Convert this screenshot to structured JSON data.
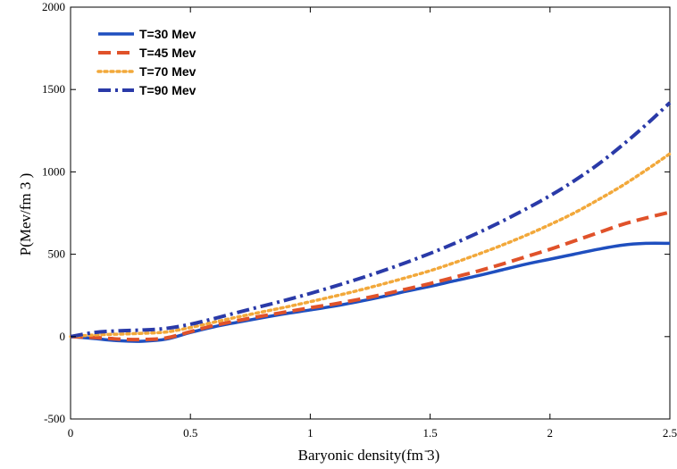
{
  "chart_data": {
    "type": "line",
    "title": "",
    "xlabel": "Baryonic density(fm ̄3)",
    "ylabel": "P(Mev/fm 3 )",
    "xlim": [
      0,
      2.5
    ],
    "ylim": [
      -500,
      2000
    ],
    "xticks": [
      "0",
      "0.5",
      "1",
      "1.5",
      "2",
      "2.5"
    ],
    "yticks": [
      "-500",
      "0",
      "500",
      "1000",
      "1500",
      "2000"
    ],
    "xtick_values": [
      0,
      0.5,
      1,
      1.5,
      2,
      2.5
    ],
    "ytick_values": [
      -500,
      0,
      500,
      1000,
      1500,
      2000
    ],
    "grid": false,
    "legend_position": "top-left",
    "series": [
      {
        "name": "T=30 Mev",
        "color": "#1f4fbf",
        "style": "solid",
        "x": [
          0,
          0.1,
          0.2,
          0.3,
          0.4,
          0.5,
          0.6,
          0.7,
          0.8,
          0.9,
          1.0,
          1.1,
          1.2,
          1.3,
          1.4,
          1.5,
          1.6,
          1.7,
          1.8,
          1.9,
          2.0,
          2.1,
          2.2,
          2.3,
          2.4,
          2.5
        ],
        "y": [
          0,
          -12,
          -25,
          -28,
          -15,
          25,
          60,
          88,
          115,
          140,
          162,
          185,
          212,
          242,
          275,
          305,
          338,
          370,
          405,
          440,
          470,
          500,
          530,
          555,
          566,
          566
        ]
      },
      {
        "name": "T=45 Mev",
        "color": "#e0522a",
        "style": "dash",
        "x": [
          0,
          0.1,
          0.2,
          0.3,
          0.4,
          0.5,
          0.6,
          0.7,
          0.8,
          0.9,
          1.0,
          1.1,
          1.2,
          1.3,
          1.4,
          1.5,
          1.6,
          1.7,
          1.8,
          1.9,
          2.0,
          2.1,
          2.2,
          2.3,
          2.4,
          2.5
        ],
        "y": [
          0,
          -5,
          -15,
          -18,
          -8,
          30,
          68,
          98,
          125,
          150,
          175,
          198,
          225,
          255,
          288,
          322,
          360,
          398,
          440,
          485,
          530,
          580,
          630,
          680,
          720,
          755
        ]
      },
      {
        "name": "T=70 Mev",
        "color": "#f2a83a",
        "style": "dot",
        "x": [
          0,
          0.1,
          0.2,
          0.3,
          0.4,
          0.5,
          0.6,
          0.7,
          0.8,
          0.9,
          1.0,
          1.1,
          1.2,
          1.3,
          1.4,
          1.5,
          1.6,
          1.7,
          1.8,
          1.9,
          2.0,
          2.1,
          2.2,
          2.3,
          2.4,
          2.5
        ],
        "y": [
          0,
          10,
          15,
          20,
          28,
          55,
          88,
          120,
          150,
          180,
          212,
          245,
          280,
          318,
          358,
          400,
          448,
          500,
          555,
          615,
          680,
          750,
          830,
          915,
          1010,
          1110
        ]
      },
      {
        "name": "T=90 Mev",
        "color": "#2a3aa8",
        "style": "dashdot",
        "x": [
          0,
          0.1,
          0.2,
          0.3,
          0.4,
          0.5,
          0.6,
          0.7,
          0.8,
          0.9,
          1.0,
          1.1,
          1.2,
          1.3,
          1.4,
          1.5,
          1.6,
          1.7,
          1.8,
          1.9,
          2.0,
          2.1,
          2.2,
          2.3,
          2.4,
          2.5
        ],
        "y": [
          0,
          25,
          35,
          40,
          50,
          75,
          110,
          148,
          185,
          222,
          262,
          305,
          350,
          398,
          450,
          505,
          565,
          630,
          700,
          775,
          855,
          945,
          1045,
          1160,
          1285,
          1420
        ]
      }
    ]
  }
}
